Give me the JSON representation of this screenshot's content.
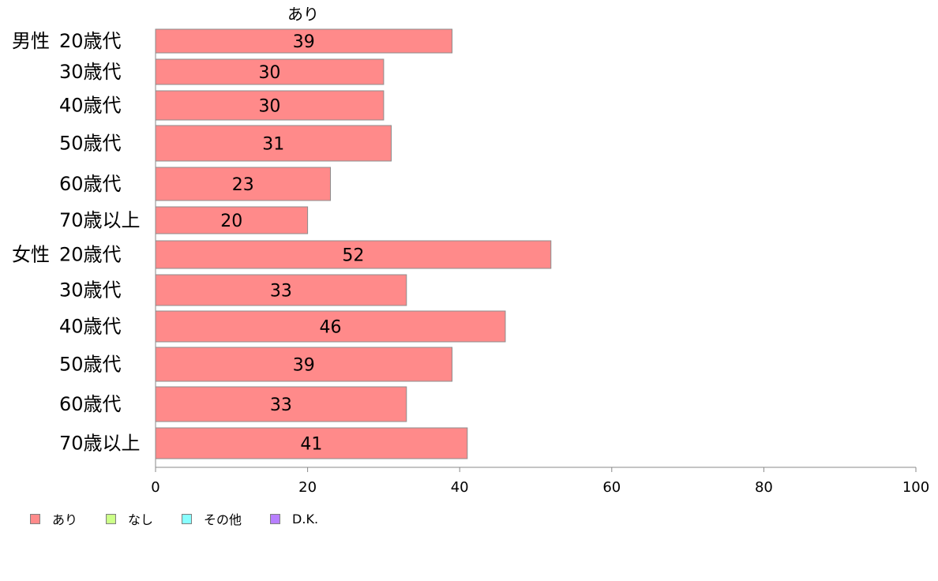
{
  "chart_data": {
    "type": "bar",
    "orientation": "horizontal",
    "title": "",
    "xlim": [
      0,
      100
    ],
    "xticks": [
      "0",
      "20",
      "40",
      "60",
      "80",
      "100"
    ],
    "grid": false,
    "series": [
      {
        "name": "あり",
        "color": "#ff8a8a"
      }
    ],
    "rows": [
      {
        "group": "男性",
        "label": "20歳代",
        "value": 39
      },
      {
        "group": "",
        "label": "30歳代",
        "value": 30
      },
      {
        "group": "",
        "label": "40歳代",
        "value": 30
      },
      {
        "group": "",
        "label": "50歳代",
        "value": 31
      },
      {
        "group": "",
        "label": "60歳代",
        "value": 23
      },
      {
        "group": "",
        "label": "70歳以上",
        "value": 20
      },
      {
        "group": "女性",
        "label": "20歳代",
        "value": 52
      },
      {
        "group": "",
        "label": "30歳代",
        "value": 33
      },
      {
        "group": "",
        "label": "40歳代",
        "value": 46
      },
      {
        "group": "",
        "label": "50歳代",
        "value": 39
      },
      {
        "group": "",
        "label": "60歳代",
        "value": 33
      },
      {
        "group": "",
        "label": "70歳以上",
        "value": 41
      }
    ],
    "column_header": "あり",
    "legend": {
      "placement": "bottom-left",
      "items": [
        {
          "label": "あり",
          "color": "#ff8a8a"
        },
        {
          "label": "なし",
          "color": "#ccff88"
        },
        {
          "label": "その他",
          "color": "#88ffff"
        },
        {
          "label": "D.K.",
          "color": "#b77fff"
        }
      ]
    }
  }
}
